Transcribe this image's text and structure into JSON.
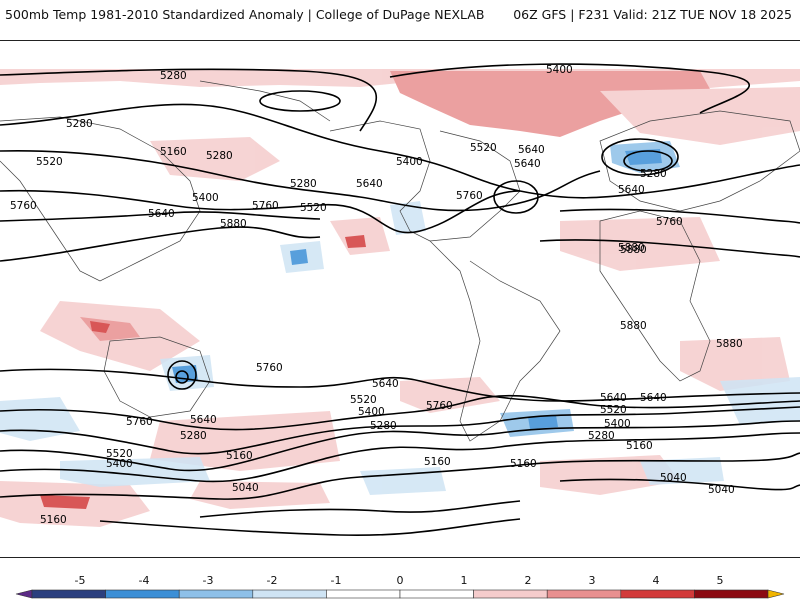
{
  "header": {
    "title_left": "500mb Temp 1981-2010 Standardized Anomaly | College of DuPage NEXLAB",
    "title_right": "06Z GFS | F231 Valid: 21Z TUE NOV 18 2025"
  },
  "map": {
    "contour_labels": [
      "5280",
      "5400",
      "5280",
      "5160",
      "5280",
      "5520",
      "5640",
      "5400",
      "5520",
      "5640",
      "5760",
      "5400",
      "5640",
      "5280",
      "5520",
      "5640",
      "5760",
      "5880",
      "5760",
      "5280",
      "5640",
      "5760",
      "5880",
      "5880",
      "5880",
      "5760",
      "5640",
      "5520",
      "5400",
      "5280",
      "5760",
      "5640",
      "5280",
      "5520",
      "5400",
      "5160",
      "5040",
      "5160",
      "5160",
      "5760",
      "5640",
      "5520",
      "5400",
      "5280",
      "5160",
      "5040",
      "5040",
      "5160",
      "5880",
      "5640"
    ]
  },
  "colorbar": {
    "labels": [
      "-5",
      "-4",
      "-3",
      "-2",
      "-1",
      "0",
      "1",
      "2",
      "3",
      "4",
      "5"
    ],
    "colors": [
      "#5b2a86",
      "#2b3f7e",
      "#3c8fd6",
      "#8ec0e8",
      "#cfe4f4",
      "#ffffff",
      "#ffffff",
      "#f5cccc",
      "#e89090",
      "#d23a3a",
      "#8b0a12",
      "#f0b400"
    ]
  }
}
